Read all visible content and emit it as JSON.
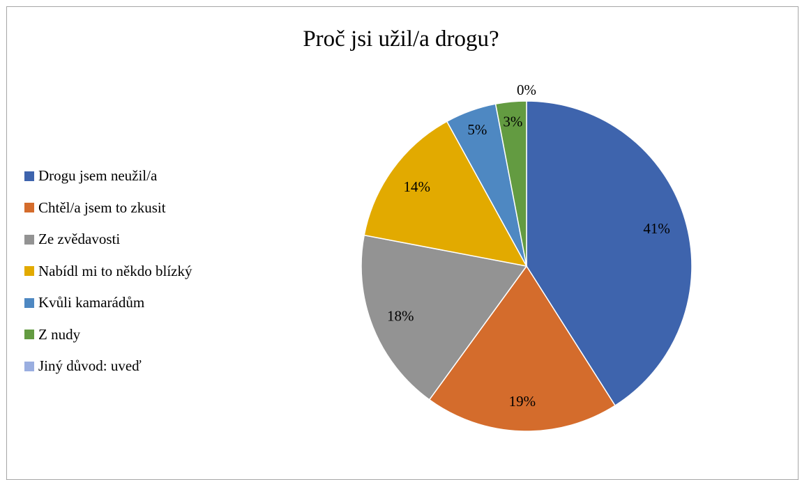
{
  "chart_data": {
    "type": "pie",
    "title": "Proč jsi užil/a drogu?",
    "legend_position": "left",
    "slices": [
      {
        "name": "Drogu jsem neužil/a",
        "value": 41,
        "label": "41%",
        "color": "#3e64ad"
      },
      {
        "name": "Chtěl/a jsem to zkusit",
        "value": 19,
        "label": "19%",
        "color": "#d46c2c"
      },
      {
        "name": "Ze zvědavosti",
        "value": 18,
        "label": "18%",
        "color": "#939393"
      },
      {
        "name": "Nabídl mi to někdo blízký",
        "value": 14,
        "label": "14%",
        "color": "#e2aa00"
      },
      {
        "name": "Kvůli kamarádům",
        "value": 5,
        "label": "5%",
        "color": "#4e88c2"
      },
      {
        "name": "Z nudy",
        "value": 3,
        "label": "3%",
        "color": "#639b41"
      },
      {
        "name": "Jiný důvod: uveď",
        "value": 0,
        "label": "0%",
        "color": "#9aaee0"
      }
    ]
  }
}
